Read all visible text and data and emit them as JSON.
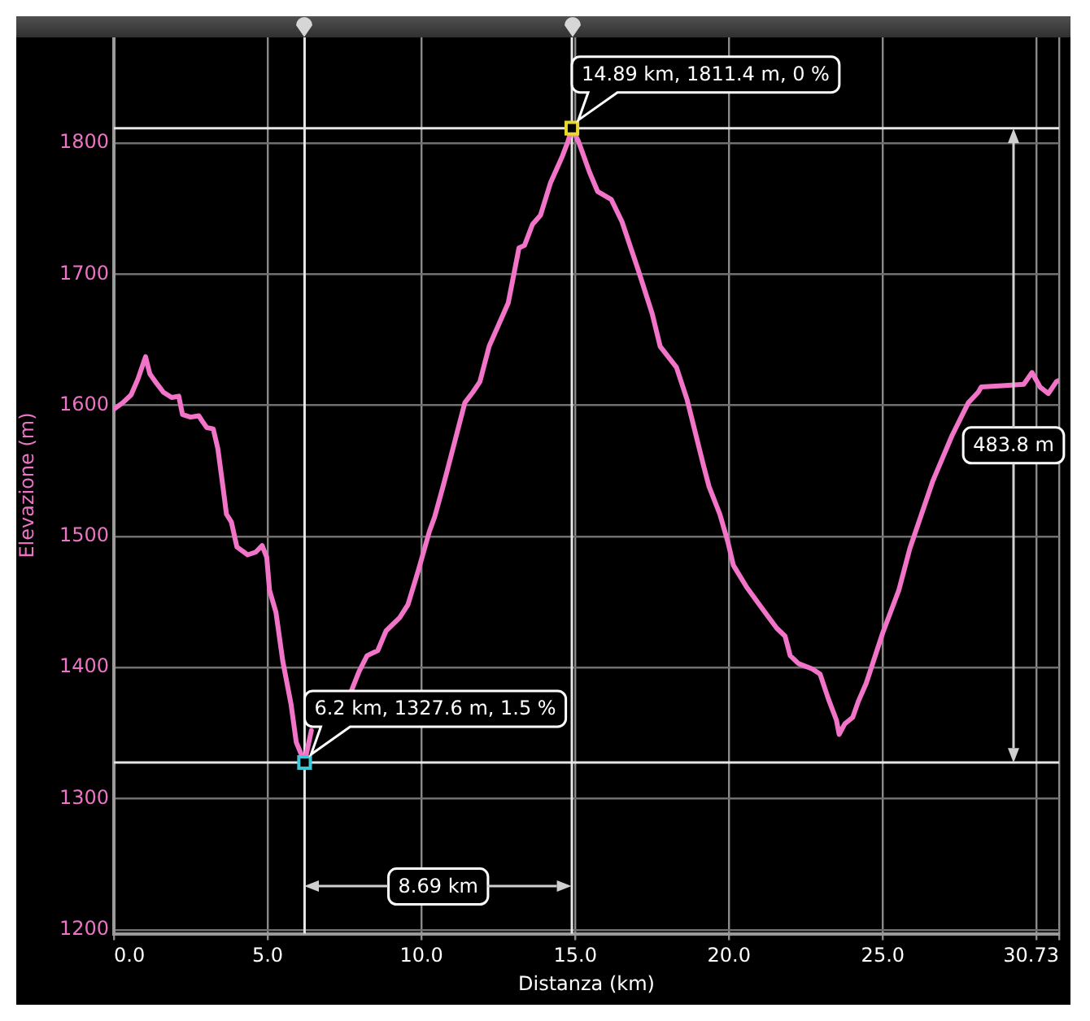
{
  "chart_data": {
    "type": "line",
    "xlabel": "Distanza (km)",
    "ylabel": "Elevazione (m)",
    "x": [
      0,
      0.29,
      0.56,
      0.78,
      1.03,
      1.17,
      1.35,
      1.61,
      1.88,
      2.11,
      2.23,
      2.49,
      2.76,
      2.9,
      3.02,
      3.23,
      3.38,
      3.55,
      3.66,
      3.82,
      4,
      4.35,
      4.61,
      4.82,
      4.97,
      5.06,
      5.27,
      5.49,
      5.76,
      5.93,
      6.2,
      6.42,
      6.82,
      7.17,
      7.7,
      7.97,
      8.23,
      8.58,
      8.85,
      9.29,
      9.56,
      9.91,
      10.26,
      10.43,
      10.7,
      10.88,
      11.41,
      11.67,
      11.9,
      12.2,
      12.82,
      13.17,
      13.35,
      13.61,
      13.87,
      14.2,
      14.58,
      14.76,
      14.89,
      15.11,
      15.46,
      15.73,
      16.17,
      16.52,
      17.05,
      17.5,
      17.76,
      18.29,
      18.64,
      19.17,
      19.35,
      19.7,
      19.96,
      20.14,
      20.58,
      21.11,
      21.55,
      21.82,
      21.99,
      22.26,
      22.7,
      22.96,
      23.23,
      23.49,
      23.58,
      23.76,
      24.02,
      24.2,
      24.46,
      24.99,
      25.52,
      25.88,
      26.62,
      27.25,
      27.78,
      28.1,
      28.2,
      28.88,
      29.58,
      29.85,
      30.11,
      30.38,
      30.64,
      30.73
    ],
    "series": [
      {
        "color": "#f274c8",
        "values": [
          1597,
          1602,
          1608,
          1620,
          1637,
          1624,
          1618,
          1610,
          1606,
          1607,
          1593,
          1591,
          1592,
          1587,
          1583,
          1582,
          1567,
          1537,
          1517,
          1511,
          1492,
          1486,
          1488,
          1493,
          1484,
          1459,
          1442,
          1405,
          1372,
          1343,
          1327.6,
          1352,
          null,
          null,
          1381,
          1397,
          1409,
          1413,
          1428,
          1438,
          1448,
          1475,
          1504,
          1515,
          1538,
          1554,
          1602,
          1610,
          1618,
          1645,
          1678,
          1720,
          1722,
          1738,
          1745,
          1770,
          1790,
          1801,
          1811.4,
          1801,
          1778,
          1763,
          1757,
          1740,
          1703,
          1670,
          1645,
          1629,
          1604,
          1554,
          1538,
          1517,
          1496,
          1478,
          1461,
          1444,
          1430,
          1424,
          1409,
          1403,
          1399,
          1395,
          1376,
          1360,
          1349,
          1357,
          1362,
          1374,
          1388,
          1426,
          1459,
          1491,
          1542,
          1577,
          1602,
          1610,
          1614,
          1615,
          1616,
          1625,
          1614,
          1609,
          1618,
          1619
        ]
      },
      {
        "type": "scatter",
        "x": [
          14.89,
          6.2
        ],
        "values": [
          1811.4,
          1327.6
        ],
        "colors": [
          "#e8d82a",
          "#3cc6d6"
        ],
        "marker": "square"
      }
    ],
    "xlim": [
      0,
      30.73
    ],
    "xticks": [
      {
        "value": 0,
        "label": "0.0"
      },
      {
        "value": 5,
        "label": "5.0"
      },
      {
        "value": 10,
        "label": "10.0"
      },
      {
        "value": 15,
        "label": "15.0"
      },
      {
        "value": 20,
        "label": "20.0"
      },
      {
        "value": 25,
        "label": "25.0"
      },
      {
        "value": 30,
        "label": null
      },
      30.73
    ],
    "ylim": [
      1197,
      1881
    ],
    "yticks": [
      1200,
      1300,
      1400,
      1500,
      1600,
      1700,
      1800
    ],
    "grid": true,
    "ref_lines": [
      {
        "axis": "x",
        "value": 6.2,
        "color": "#e6e6e6"
      },
      {
        "axis": "x",
        "value": 14.89,
        "color": "#e6e6e6"
      },
      {
        "axis": "y",
        "value": 1327.6,
        "color": "#e6e6e6"
      },
      {
        "axis": "y",
        "value": 1811.4,
        "color": "#e6e6e6"
      }
    ],
    "annotations": [
      {
        "text": "14.89 km, 1811.4 m, 0 %",
        "x": 14.89,
        "y": 1811.4
      },
      {
        "text": "6.2 km, 1327.6 m, 1.5 %",
        "x": 6.2,
        "y": 1327.6
      },
      "8.69 km",
      "483.8 m"
    ]
  }
}
